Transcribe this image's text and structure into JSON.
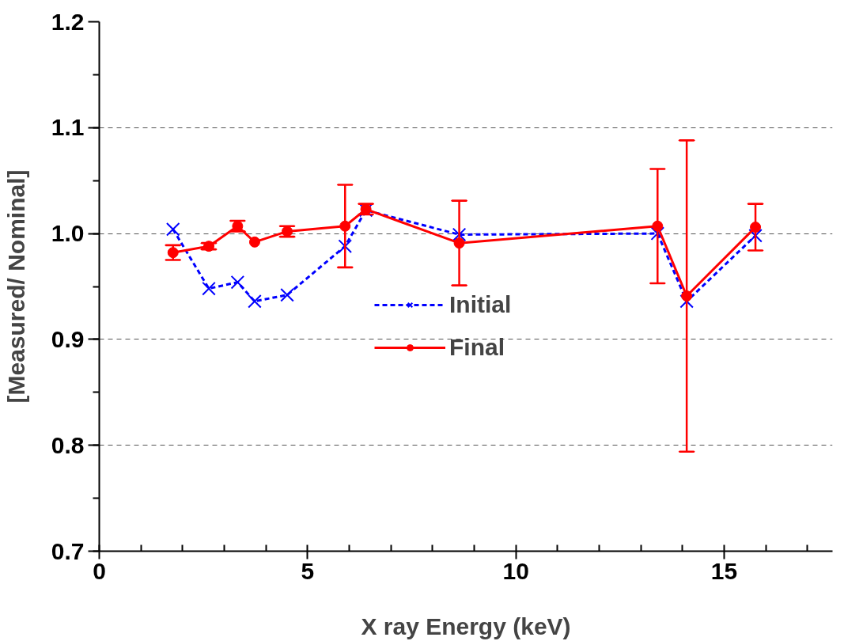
{
  "chart_data": {
    "type": "line",
    "xlabel": "X ray Energy (keV)",
    "ylabel": "[Measured/ Nominal]",
    "xlim": [
      0,
      17.6
    ],
    "xticks": [
      0,
      5,
      10,
      15
    ],
    "ylim": [
      0.7,
      1.2
    ],
    "yticks": [
      0.7,
      0.8,
      0.9,
      {
        "value": 1,
        "label": "1.0"
      },
      1.1,
      1.2
    ],
    "grid": "y",
    "legend": "center",
    "x": [
      1.77,
      2.63,
      3.32,
      3.73,
      4.51,
      5.9,
      6.4,
      8.64,
      13.4,
      14.1,
      15.75
    ],
    "series": [
      {
        "name": "Initial",
        "color": "#0000ff",
        "marker": "cross",
        "line_style": "dashed",
        "values": [
          1.004,
          0.948,
          0.954,
          0.936,
          0.942,
          0.988,
          1.022,
          0.999,
          1.0,
          0.936,
          0.998
        ]
      },
      {
        "name": "Final",
        "color": "#ff0000",
        "marker": "circle",
        "line_style": "solid",
        "values": [
          0.982,
          0.988,
          1.007,
          0.992,
          1.002,
          1.007,
          1.023,
          0.991,
          1.007,
          0.941,
          1.006
        ],
        "errors": [
          0.007,
          0.003,
          0.005,
          null,
          0.005,
          0.039,
          0.005,
          0.04,
          0.054,
          0.147,
          0.022
        ]
      }
    ]
  }
}
